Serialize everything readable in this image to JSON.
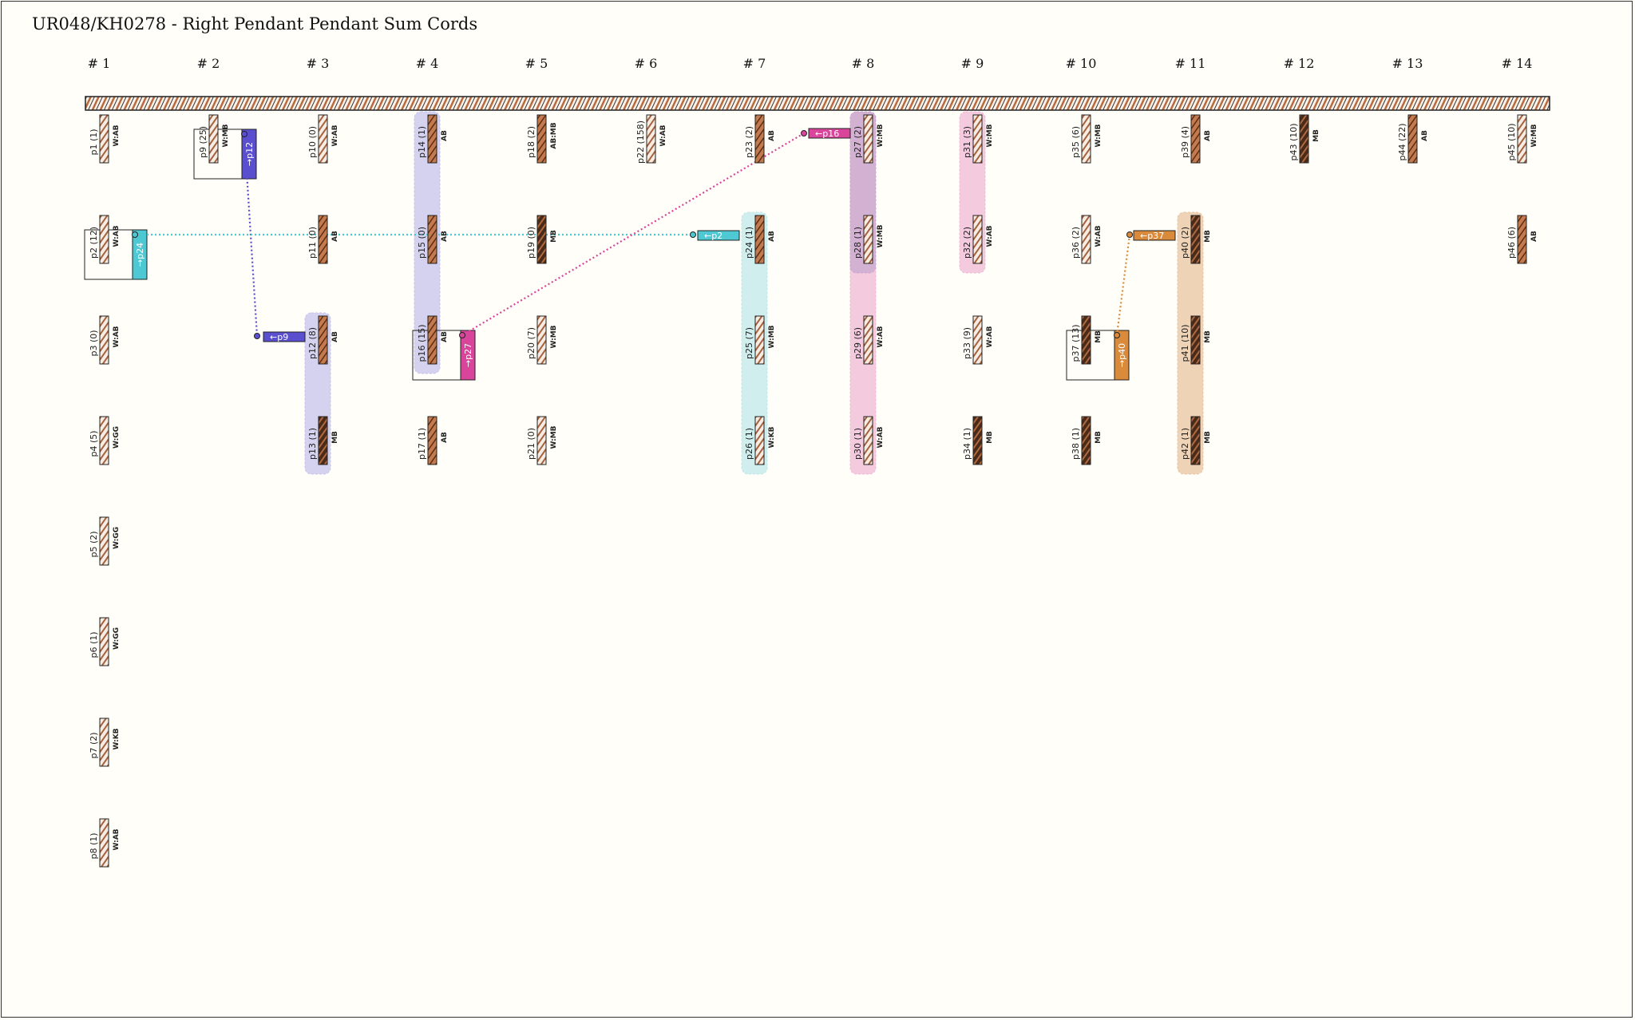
{
  "title": "UR048/KH0278 - Right Pendant Pendant Sum Cords",
  "columns": [
    "# 1",
    "# 2",
    "# 3",
    "# 4",
    "# 5",
    "# 6",
    "# 7",
    "# 8",
    "# 9",
    "# 10",
    "# 11",
    "# 12",
    "# 13",
    "# 14"
  ],
  "colors": {
    "background": "#fffef8",
    "brown": "#b86a3e",
    "dark": "#3d2416",
    "link_blue": "#5a4fcf",
    "link_cyan": "#4ec8d2",
    "link_pink": "#d9459a",
    "link_orange": "#d98a3a",
    "hl_lavender": "#c7c3ee",
    "hl_cyan": "#bfe8ea",
    "hl_pink": "#f0b9d6",
    "hl_mauve": "#c8a8cf",
    "hl_tan": "#e8c4a0"
  },
  "cords": [
    {
      "id": "p1",
      "label": "p1 (1)",
      "tag": "W:AB",
      "pattern": "light"
    },
    {
      "id": "p2",
      "label": "p2 (12)",
      "tag": "W:AB",
      "pattern": "light"
    },
    {
      "id": "p3",
      "label": "p3 (0)",
      "tag": "W:AB",
      "pattern": "light"
    },
    {
      "id": "p4",
      "label": "p4 (5)",
      "tag": "W:GG",
      "pattern": "light"
    },
    {
      "id": "p5",
      "label": "p5 (2)",
      "tag": "W:GG",
      "pattern": "light"
    },
    {
      "id": "p6",
      "label": "p6 (1)",
      "tag": "W:GG",
      "pattern": "light"
    },
    {
      "id": "p7",
      "label": "p7 (2)",
      "tag": "W:KB",
      "pattern": "light"
    },
    {
      "id": "p8",
      "label": "p8 (1)",
      "tag": "W:AB",
      "pattern": "light"
    },
    {
      "id": "p9",
      "label": "p9 (25)",
      "tag": "W:MB",
      "pattern": "light"
    },
    {
      "id": "p10",
      "label": "p10 (0)",
      "tag": "W:AB",
      "pattern": "light"
    },
    {
      "id": "p11",
      "label": "p11 (0)",
      "tag": "AB",
      "pattern": "brown"
    },
    {
      "id": "p12",
      "label": "p12 (8)",
      "tag": "AB",
      "pattern": "brown"
    },
    {
      "id": "p13",
      "label": "p13 (1)",
      "tag": "MB",
      "pattern": "dark"
    },
    {
      "id": "p14",
      "label": "p14 (1)",
      "tag": "AB",
      "pattern": "brown"
    },
    {
      "id": "p15",
      "label": "p15 (0)",
      "tag": "AB",
      "pattern": "brown"
    },
    {
      "id": "p16",
      "label": "p16 (15)",
      "tag": "AB",
      "pattern": "brown"
    },
    {
      "id": "p17",
      "label": "p17 (1)",
      "tag": "AB",
      "pattern": "brown"
    },
    {
      "id": "p18",
      "label": "p18 (2)",
      "tag": "AB:MB",
      "pattern": "brown"
    },
    {
      "id": "p19",
      "label": "p19 (0)",
      "tag": "MB",
      "pattern": "dark"
    },
    {
      "id": "p20",
      "label": "p20 (7)",
      "tag": "W:MB",
      "pattern": "light"
    },
    {
      "id": "p21",
      "label": "p21 (0)",
      "tag": "W:MB",
      "pattern": "light"
    },
    {
      "id": "p22",
      "label": "p22 (158)",
      "tag": "W:AB",
      "pattern": "light"
    },
    {
      "id": "p23",
      "label": "p23 (2)",
      "tag": "AB",
      "pattern": "brown"
    },
    {
      "id": "p24",
      "label": "p24 (1)",
      "tag": "AB",
      "pattern": "brown"
    },
    {
      "id": "p25",
      "label": "p25 (7)",
      "tag": "W:MB",
      "pattern": "light"
    },
    {
      "id": "p26",
      "label": "p26 (1)",
      "tag": "W:KB",
      "pattern": "light"
    },
    {
      "id": "p27",
      "label": "p27 (2)",
      "tag": "W:MB",
      "pattern": "light"
    },
    {
      "id": "p28",
      "label": "p28 (1)",
      "tag": "W:MB",
      "pattern": "light"
    },
    {
      "id": "p29",
      "label": "p29 (6)",
      "tag": "W:AB",
      "pattern": "light"
    },
    {
      "id": "p30",
      "label": "p30 (1)",
      "tag": "W:AB",
      "pattern": "light"
    },
    {
      "id": "p31",
      "label": "p31 (3)",
      "tag": "W:MB",
      "pattern": "light"
    },
    {
      "id": "p32",
      "label": "p32 (2)",
      "tag": "W:AB",
      "pattern": "light"
    },
    {
      "id": "p33",
      "label": "p33 (9)",
      "tag": "W:AB",
      "pattern": "light"
    },
    {
      "id": "p34",
      "label": "p34 (1)",
      "tag": "MB",
      "pattern": "dark"
    },
    {
      "id": "p35",
      "label": "p35 (6)",
      "tag": "W:MB",
      "pattern": "light"
    },
    {
      "id": "p36",
      "label": "p36 (2)",
      "tag": "W:AB",
      "pattern": "light"
    },
    {
      "id": "p37",
      "label": "p37 (13)",
      "tag": "MB",
      "pattern": "dark"
    },
    {
      "id": "p38",
      "label": "p38 (1)",
      "tag": "MB",
      "pattern": "dark"
    },
    {
      "id": "p39",
      "label": "p39 (4)",
      "tag": "AB",
      "pattern": "brown"
    },
    {
      "id": "p40",
      "label": "p40 (2)",
      "tag": "MB",
      "pattern": "dark"
    },
    {
      "id": "p41",
      "label": "p41 (10)",
      "tag": "MB",
      "pattern": "dark"
    },
    {
      "id": "p42",
      "label": "p42 (1)",
      "tag": "MB",
      "pattern": "dark"
    },
    {
      "id": "p43",
      "label": "p43 (10)",
      "tag": "MB",
      "pattern": "dark"
    },
    {
      "id": "p44",
      "label": "p44 (22)",
      "tag": "AB",
      "pattern": "brown"
    },
    {
      "id": "p45",
      "label": "p45 (10)",
      "tag": "W:MB",
      "pattern": "light"
    },
    {
      "id": "p46",
      "label": "p46 (6)",
      "tag": "AB",
      "pattern": "brown"
    }
  ],
  "sum_tags": [
    {
      "cord": "p9",
      "text": "→p12",
      "color": "#5a4fcf"
    },
    {
      "cord": "p2",
      "text": "→p24",
      "color": "#4ec8d2"
    },
    {
      "cord": "p16",
      "text": "→p27",
      "color": "#d9459a"
    },
    {
      "cord": "p37",
      "text": "→p40",
      "color": "#d98a3a"
    }
  ],
  "back_tags": [
    {
      "text": "←p9",
      "color": "#5a4fcf"
    },
    {
      "text": "←p2",
      "color": "#4ec8d2"
    },
    {
      "text": "←p16",
      "color": "#d9459a"
    },
    {
      "text": "←p37",
      "color": "#d98a3a"
    }
  ]
}
